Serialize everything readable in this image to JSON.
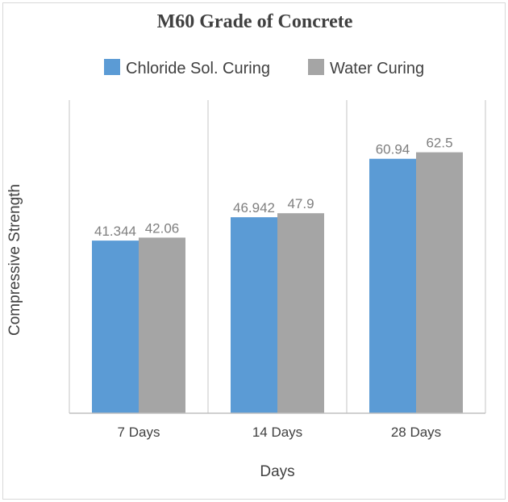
{
  "chart_data": {
    "type": "bar",
    "title": "M60 Grade of Concrete",
    "xlabel": "Days",
    "ylabel": "Compressive Strength",
    "categories": [
      "7 Days",
      "14 Days",
      "28 Days"
    ],
    "series": [
      {
        "name": "Chloride Sol. Curing",
        "values": [
          41.344,
          46.942,
          60.94
        ],
        "labels": [
          "41.344",
          "46.942",
          "60.94"
        ],
        "color": "#5b9bd5"
      },
      {
        "name": "Water Curing",
        "values": [
          42.06,
          47.9,
          62.5
        ],
        "labels": [
          "42.06",
          "47.9",
          "62.5"
        ],
        "color": "#a5a5a5"
      }
    ],
    "ylim": [
      0,
      75
    ],
    "grid": {
      "vertical_category_separators": true,
      "horizontal": false
    },
    "legend_position": "top",
    "colors": {
      "axis": "#bfbfbf",
      "separator": "#d9d9d9",
      "text": "#404040",
      "data_label": "#7f7f7f"
    }
  }
}
